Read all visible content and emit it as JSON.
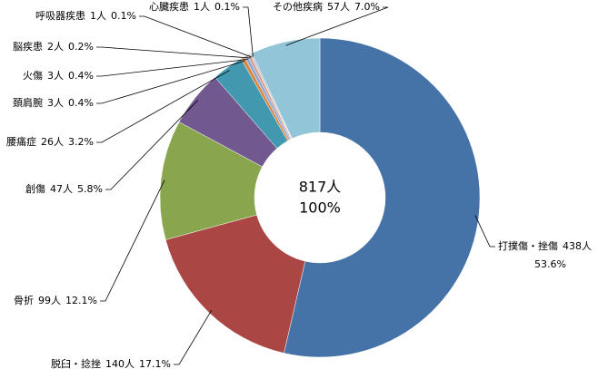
{
  "chart_data": {
    "type": "donut",
    "categories": [
      "打撲傷・挫傷",
      "脱臼・捻挫",
      "骨折",
      "創傷",
      "腰痛症",
      "頚肩腕",
      "火傷",
      "脳疾患",
      "呼吸器疾患",
      "心臓疾患",
      "その他疾病"
    ],
    "values": [
      438,
      140,
      99,
      47,
      26,
      3,
      3,
      2,
      1,
      1,
      57
    ],
    "value_labels": [
      "438人",
      "140人",
      "99人",
      "47人",
      "26人",
      "3人",
      "3人",
      "2人",
      "1人",
      "1人",
      "57人"
    ],
    "percents": [
      53.6,
      17.1,
      12.1,
      5.8,
      3.2,
      0.4,
      0.4,
      0.2,
      0.1,
      0.1,
      7.0
    ],
    "percent_labels": [
      "53.6%",
      "17.1%",
      "12.1%",
      "5.8%",
      "3.2%",
      "0.4%",
      "0.4%",
      "0.2%",
      "0.1%",
      "0.1%",
      "7.0%"
    ],
    "colors": [
      "#4572a7",
      "#aa4643",
      "#89a54e",
      "#71588f",
      "#4198af",
      "#db843d",
      "#93a9cf",
      "#d19392",
      "#b9cd96",
      "#a99bbd",
      "#93c5d9"
    ],
    "total": {
      "value": 817,
      "label": "817人"
    },
    "total_percent": {
      "value": 100,
      "label": "100%"
    }
  }
}
